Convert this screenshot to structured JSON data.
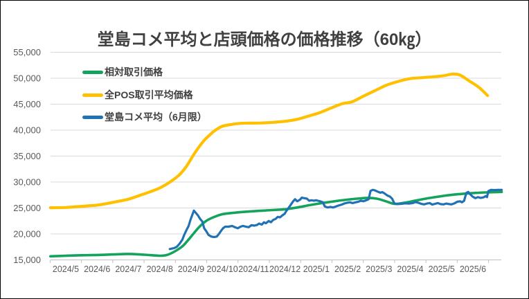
{
  "title": "堂島コメ平均と店頭価格の価格推移（60㎏）",
  "chart_data": {
    "type": "line",
    "title": "堂島コメ平均と店頭価格の価格推移（60㎏）",
    "unit": "JPY per 60kg",
    "grid": "horizontal",
    "legend_position": "inside-top-left",
    "colors": {
      "title_text": "#404040",
      "axis_text": "#595959",
      "gridline": "#d9d9d9",
      "axis_line": "#bfbfbf"
    },
    "x_axis": {
      "tick_labels": [
        "2024/5",
        "2024/6",
        "2024/7",
        "2024/8",
        "2024/9",
        "2024/10",
        "2024/11",
        "2024/12",
        "2025/1",
        "2025/2",
        "2025/3",
        "2025/4",
        "2025/5",
        "2025/6"
      ]
    },
    "y_axis": {
      "min": 15000,
      "max": 55000,
      "step": 5000,
      "tick_labels": [
        "55,000",
        "50,000",
        "45,000",
        "40,000",
        "35,000",
        "30,000",
        "25,000",
        "20,000",
        "15,000"
      ]
    },
    "series": [
      {
        "name": "相対取引価格",
        "color": "#14a35c",
        "smooth": true,
        "width": 3.6,
        "points": [
          [
            -0.49,
            15700
          ],
          [
            0,
            15800
          ],
          [
            0.51,
            15900
          ],
          [
            1.0,
            15950
          ],
          [
            1.5,
            16050
          ],
          [
            2.0,
            16150
          ],
          [
            2.5,
            16000
          ],
          [
            3.0,
            15800
          ],
          [
            3.23,
            15950
          ],
          [
            3.47,
            16600
          ],
          [
            3.72,
            17600
          ],
          [
            3.89,
            18700
          ],
          [
            4.07,
            20000
          ],
          [
            4.27,
            21400
          ],
          [
            4.47,
            22450
          ],
          [
            4.69,
            23150
          ],
          [
            5.0,
            23800
          ],
          [
            5.4,
            24100
          ],
          [
            5.8,
            24300
          ],
          [
            6.19,
            24450
          ],
          [
            6.59,
            24600
          ],
          [
            6.99,
            24750
          ],
          [
            7.39,
            25100
          ],
          [
            7.79,
            25550
          ],
          [
            8.19,
            25950
          ],
          [
            8.58,
            26300
          ],
          [
            8.98,
            26600
          ],
          [
            9.31,
            26800
          ],
          [
            9.65,
            26950
          ],
          [
            9.93,
            26800
          ],
          [
            10.22,
            26300
          ],
          [
            10.49,
            25800
          ],
          [
            10.8,
            26000
          ],
          [
            11.19,
            26450
          ],
          [
            11.64,
            26950
          ],
          [
            12.08,
            27350
          ],
          [
            12.52,
            27650
          ],
          [
            12.96,
            27850
          ],
          [
            13.41,
            28000
          ],
          [
            13.92,
            28100
          ]
        ]
      },
      {
        "name": "全POS取引平均価格",
        "color": "#ffc000",
        "smooth": true,
        "width": 4.2,
        "points": [
          [
            -0.49,
            25050
          ],
          [
            0,
            25100
          ],
          [
            0.35,
            25250
          ],
          [
            0.69,
            25400
          ],
          [
            1.0,
            25550
          ],
          [
            1.35,
            25900
          ],
          [
            1.68,
            26300
          ],
          [
            2.0,
            26700
          ],
          [
            2.35,
            27400
          ],
          [
            2.68,
            28100
          ],
          [
            3.0,
            28850
          ],
          [
            3.3,
            29900
          ],
          [
            3.61,
            31300
          ],
          [
            3.85,
            33000
          ],
          [
            4.12,
            35600
          ],
          [
            4.4,
            37900
          ],
          [
            4.62,
            39200
          ],
          [
            4.78,
            40000
          ],
          [
            5.0,
            40750
          ],
          [
            5.29,
            41100
          ],
          [
            5.55,
            41300
          ],
          [
            5.88,
            41350
          ],
          [
            6.22,
            41380
          ],
          [
            6.61,
            41500
          ],
          [
            6.99,
            41700
          ],
          [
            7.37,
            42050
          ],
          [
            7.72,
            42650
          ],
          [
            8.1,
            43350
          ],
          [
            8.47,
            44250
          ],
          [
            8.83,
            45100
          ],
          [
            9.14,
            45450
          ],
          [
            9.49,
            46500
          ],
          [
            9.87,
            47600
          ],
          [
            10.24,
            48650
          ],
          [
            10.6,
            49350
          ],
          [
            10.97,
            49900
          ],
          [
            11.35,
            50100
          ],
          [
            11.7,
            50250
          ],
          [
            12.08,
            50500
          ],
          [
            12.35,
            50800
          ],
          [
            12.59,
            50600
          ],
          [
            12.9,
            49400
          ],
          [
            13.19,
            48250
          ],
          [
            13.47,
            46650
          ]
        ]
      },
      {
        "name": "堂島コメ平均（6月限）",
        "color": "#2171b5",
        "smooth": false,
        "width": 3.2,
        "points": [
          [
            3.32,
            17100
          ],
          [
            3.45,
            17250
          ],
          [
            3.54,
            17500
          ],
          [
            3.63,
            18100
          ],
          [
            3.72,
            18900
          ],
          [
            3.78,
            19800
          ],
          [
            3.85,
            20700
          ],
          [
            3.92,
            21500
          ],
          [
            3.98,
            22700
          ],
          [
            4.09,
            24500
          ],
          [
            4.16,
            24000
          ],
          [
            4.23,
            23500
          ],
          [
            4.29,
            22900
          ],
          [
            4.36,
            22400
          ],
          [
            4.42,
            21100
          ],
          [
            4.49,
            20500
          ],
          [
            4.56,
            19800
          ],
          [
            4.65,
            19500
          ],
          [
            4.73,
            19400
          ],
          [
            4.82,
            19500
          ],
          [
            4.89,
            20000
          ],
          [
            4.96,
            20600
          ],
          [
            5.02,
            21100
          ],
          [
            5.09,
            21400
          ],
          [
            5.2,
            21400
          ],
          [
            5.31,
            21550
          ],
          [
            5.4,
            21300
          ],
          [
            5.49,
            21100
          ],
          [
            5.58,
            21400
          ],
          [
            5.66,
            21550
          ],
          [
            5.75,
            21400
          ],
          [
            5.84,
            21300
          ],
          [
            5.93,
            21700
          ],
          [
            6.02,
            21600
          ],
          [
            6.11,
            21750
          ],
          [
            6.17,
            22000
          ],
          [
            6.26,
            21800
          ],
          [
            6.33,
            22250
          ],
          [
            6.39,
            22050
          ],
          [
            6.48,
            22500
          ],
          [
            6.55,
            22250
          ],
          [
            6.62,
            22700
          ],
          [
            6.7,
            22900
          ],
          [
            6.77,
            23300
          ],
          [
            6.84,
            23200
          ],
          [
            6.92,
            23600
          ],
          [
            6.99,
            23900
          ],
          [
            7.04,
            24400
          ],
          [
            7.1,
            24900
          ],
          [
            7.17,
            25500
          ],
          [
            7.26,
            26300
          ],
          [
            7.32,
            26700
          ],
          [
            7.39,
            26300
          ],
          [
            7.48,
            26600
          ],
          [
            7.54,
            27000
          ],
          [
            7.61,
            26900
          ],
          [
            7.7,
            26800
          ],
          [
            7.77,
            26400
          ],
          [
            7.85,
            26500
          ],
          [
            7.92,
            26400
          ],
          [
            7.99,
            26500
          ],
          [
            8.05,
            26400
          ],
          [
            8.14,
            26250
          ],
          [
            8.21,
            26100
          ],
          [
            8.27,
            25300
          ],
          [
            8.36,
            25100
          ],
          [
            8.45,
            25200
          ],
          [
            8.54,
            25100
          ],
          [
            8.63,
            25300
          ],
          [
            8.72,
            25500
          ],
          [
            8.81,
            25650
          ],
          [
            8.89,
            25850
          ],
          [
            8.98,
            26000
          ],
          [
            9.07,
            26100
          ],
          [
            9.16,
            25950
          ],
          [
            9.25,
            26100
          ],
          [
            9.34,
            26200
          ],
          [
            9.42,
            26400
          ],
          [
            9.51,
            26300
          ],
          [
            9.6,
            26500
          ],
          [
            9.67,
            26700
          ],
          [
            9.73,
            28300
          ],
          [
            9.8,
            28500
          ],
          [
            9.87,
            28400
          ],
          [
            9.96,
            28150
          ],
          [
            10.04,
            27950
          ],
          [
            10.11,
            28050
          ],
          [
            10.18,
            27800
          ],
          [
            10.27,
            27400
          ],
          [
            10.35,
            27200
          ],
          [
            10.42,
            26800
          ],
          [
            10.49,
            25900
          ],
          [
            10.58,
            25750
          ],
          [
            10.71,
            25800
          ],
          [
            10.84,
            25900
          ],
          [
            10.97,
            25850
          ],
          [
            11.08,
            25950
          ],
          [
            11.17,
            26150
          ],
          [
            11.26,
            26000
          ],
          [
            11.35,
            25800
          ],
          [
            11.44,
            25700
          ],
          [
            11.53,
            25850
          ],
          [
            11.62,
            25950
          ],
          [
            11.7,
            25650
          ],
          [
            11.79,
            25800
          ],
          [
            11.88,
            25950
          ],
          [
            11.97,
            25750
          ],
          [
            12.06,
            25700
          ],
          [
            12.15,
            25850
          ],
          [
            12.24,
            25750
          ],
          [
            12.32,
            25700
          ],
          [
            12.41,
            25900
          ],
          [
            12.5,
            26200
          ],
          [
            12.59,
            26300
          ],
          [
            12.65,
            26100
          ],
          [
            12.72,
            26400
          ],
          [
            12.79,
            27900
          ],
          [
            12.85,
            28100
          ],
          [
            12.92,
            27600
          ],
          [
            12.99,
            27200
          ],
          [
            13.08,
            26900
          ],
          [
            13.16,
            27100
          ],
          [
            13.25,
            26950
          ],
          [
            13.34,
            27050
          ],
          [
            13.41,
            27300
          ],
          [
            13.45,
            27100
          ],
          [
            13.5,
            28300
          ],
          [
            13.58,
            28500
          ],
          [
            13.69,
            28450
          ],
          [
            13.8,
            28500
          ],
          [
            13.92,
            28500
          ]
        ]
      }
    ]
  }
}
